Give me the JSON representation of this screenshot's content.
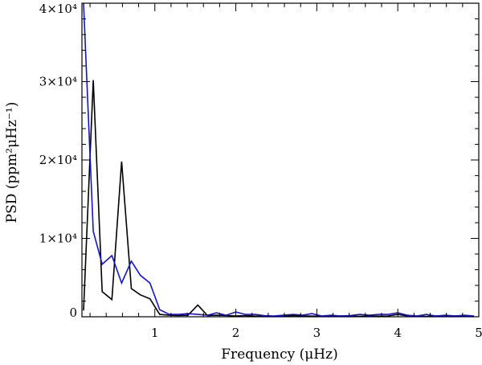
{
  "chart_data": {
    "type": "line",
    "xlabel": "Frequency (μHz)",
    "ylabel": "PSD (ppm²μHz⁻¹)",
    "xlim": [
      0.1,
      5.0
    ],
    "ylim": [
      0,
      40000
    ],
    "grid": false,
    "legend": "none",
    "x_ticks": [
      {
        "value": 1,
        "label": "1"
      },
      {
        "value": 2,
        "label": "2"
      },
      {
        "value": 3,
        "label": "3"
      },
      {
        "value": 4,
        "label": "4"
      },
      {
        "value": 5,
        "label": "5"
      }
    ],
    "y_ticks": [
      {
        "value": 0,
        "label": "0"
      },
      {
        "value": 10000,
        "label": "1×10⁴"
      },
      {
        "value": 20000,
        "label": "2×10⁴"
      },
      {
        "value": 30000,
        "label": "3×10⁴"
      },
      {
        "value": 40000,
        "label": "4×10⁴"
      }
    ],
    "series": [
      {
        "color": "#000000",
        "x": [
          0.12,
          0.24,
          0.35,
          0.47,
          0.59,
          0.71,
          0.82,
          0.94,
          1.06,
          1.18,
          1.29,
          1.41,
          1.53,
          1.65,
          1.76,
          1.88,
          2.0,
          2.12,
          2.24,
          2.35,
          2.47,
          2.59,
          2.71,
          2.82,
          2.94,
          3.06,
          3.18,
          3.29,
          3.41,
          3.53,
          3.65,
          3.76,
          3.88,
          4.0,
          4.12,
          4.24,
          4.35,
          4.47,
          4.59,
          4.71,
          4.82,
          4.94
        ],
        "y": [
          800,
          30200,
          3200,
          2200,
          19800,
          3600,
          2800,
          2300,
          300,
          200,
          150,
          200,
          1500,
          150,
          200,
          150,
          100,
          150,
          80,
          100,
          50,
          80,
          150,
          100,
          80,
          60,
          50,
          100,
          80,
          60,
          100,
          80,
          100,
          300,
          100,
          80,
          50,
          100,
          80,
          100,
          50,
          80
        ]
      },
      {
        "color": "#1414c8",
        "x": [
          0.12,
          0.24,
          0.35,
          0.47,
          0.59,
          0.71,
          0.82,
          0.94,
          1.06,
          1.18,
          1.29,
          1.41,
          1.53,
          1.65,
          1.76,
          1.88,
          2.0,
          2.12,
          2.24,
          2.35,
          2.47,
          2.59,
          2.71,
          2.82,
          2.94,
          3.06,
          3.18,
          3.29,
          3.41,
          3.53,
          3.65,
          3.76,
          3.88,
          4.0,
          4.12,
          4.24,
          4.35,
          4.47,
          4.59,
          4.71,
          4.82,
          4.94
        ],
        "y": [
          40000,
          10900,
          6700,
          7800,
          4300,
          7100,
          5300,
          4300,
          900,
          300,
          300,
          400,
          300,
          200,
          500,
          200,
          600,
          300,
          300,
          150,
          100,
          200,
          300,
          200,
          400,
          100,
          200,
          100,
          150,
          300,
          200,
          300,
          300,
          500,
          200,
          100,
          300,
          100,
          200,
          100,
          200,
          100
        ]
      }
    ]
  }
}
